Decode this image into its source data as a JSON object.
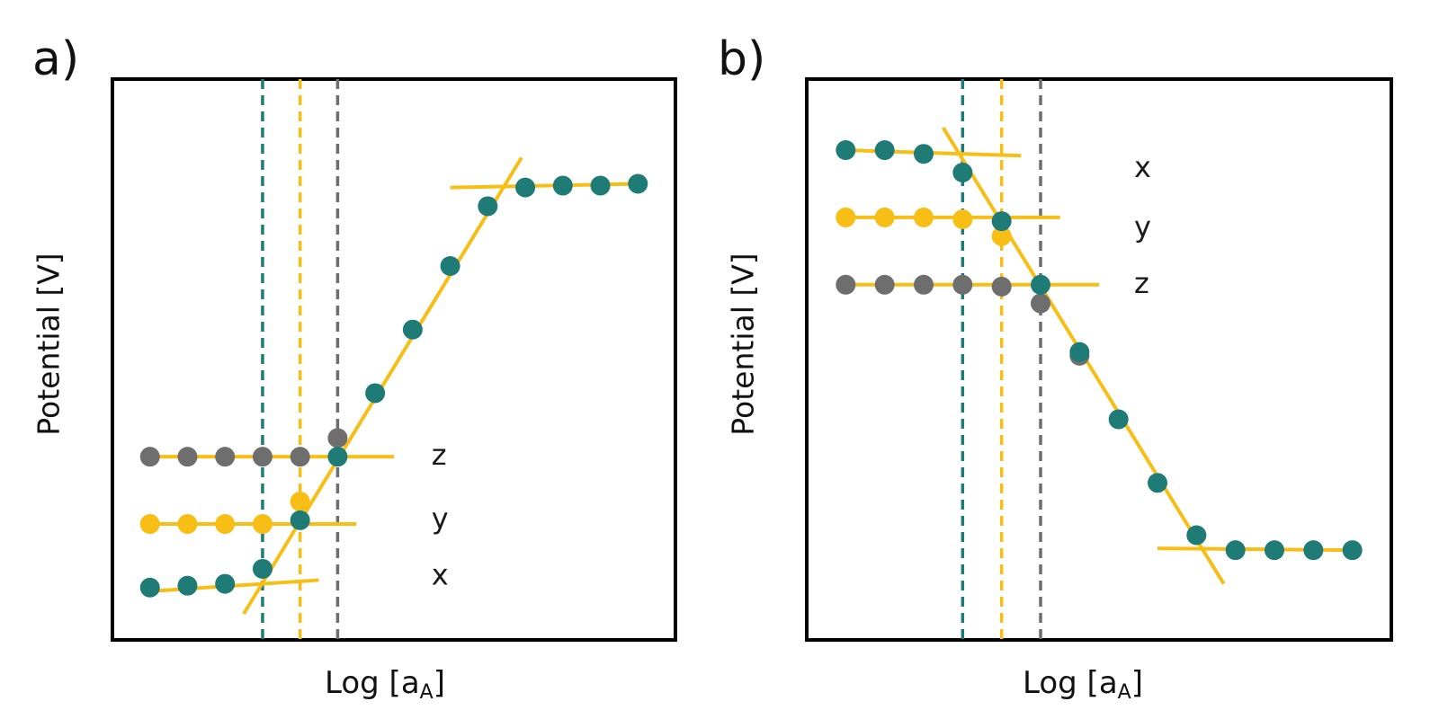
{
  "colors": {
    "teal": "#1e7b75",
    "yellow": "#f7be16",
    "gray": "#6f6e6e",
    "frame": "#000000"
  },
  "chart_data": [
    {
      "panel": "a)",
      "type": "scatter",
      "xlabel_main": "Log [a",
      "xlabel_sub": "A",
      "xlabel_close": "]",
      "ylabel": "Potential  [V]",
      "axis_ticks": "none",
      "grid": false,
      "xlim": [
        0,
        15
      ],
      "ylim": [
        0,
        15
      ],
      "series": [
        {
          "name": "x",
          "color": "teal",
          "x": [
            1,
            2,
            3,
            4,
            5,
            6,
            7,
            8,
            9,
            10,
            11,
            12,
            13,
            14
          ],
          "y": [
            1.4,
            1.45,
            1.5,
            1.9,
            3.2,
            4.9,
            6.6,
            8.3,
            10.0,
            11.6,
            12.1,
            12.15,
            12.15,
            12.2
          ]
        },
        {
          "name": "y",
          "color": "yellow",
          "x": [
            1,
            2,
            3,
            4,
            5
          ],
          "y": [
            3.1,
            3.1,
            3.1,
            3.1,
            3.7
          ]
        },
        {
          "name": "z",
          "color": "gray",
          "x": [
            1,
            2,
            3,
            4,
            5,
            6
          ],
          "y": [
            4.9,
            4.9,
            4.9,
            4.9,
            4.9,
            5.4
          ]
        }
      ],
      "fit_lines": [
        {
          "color": "yellow",
          "x": [
            3.5,
            10.9
          ],
          "y": [
            0.7,
            12.9
          ]
        },
        {
          "color": "yellow",
          "x": [
            1,
            5.5
          ],
          "y": [
            1.3,
            1.6
          ]
        },
        {
          "color": "yellow",
          "x": [
            1,
            6.5
          ],
          "y": [
            3.1,
            3.1
          ]
        },
        {
          "color": "yellow",
          "x": [
            1,
            7.5
          ],
          "y": [
            4.9,
            4.9
          ]
        },
        {
          "color": "yellow",
          "x": [
            9,
            14
          ],
          "y": [
            12.1,
            12.2
          ]
        }
      ],
      "vlines": [
        {
          "color": "teal",
          "x": 4
        },
        {
          "color": "yellow",
          "x": 5
        },
        {
          "color": "gray",
          "x": 6
        }
      ],
      "annotations": [
        {
          "text": "z",
          "x": 8.5,
          "y": 4.9
        },
        {
          "text": "y",
          "x": 8.5,
          "y": 3.2
        },
        {
          "text": "x",
          "x": 8.5,
          "y": 1.7
        }
      ]
    },
    {
      "panel": "b)",
      "type": "scatter",
      "xlabel_main": "Log [a",
      "xlabel_sub": "A",
      "xlabel_close": "]",
      "ylabel": "Potential  [V]",
      "axis_ticks": "none",
      "grid": false,
      "xlim": [
        0,
        15
      ],
      "ylim": [
        0,
        15
      ],
      "series": [
        {
          "name": "x",
          "color": "teal",
          "x": [
            1,
            2,
            3,
            4,
            5,
            6,
            7,
            8,
            9,
            10,
            11,
            12,
            13,
            14
          ],
          "y": [
            13.1,
            13.1,
            13.0,
            12.5,
            11.2,
            9.5,
            7.7,
            5.9,
            4.2,
            2.8,
            2.4,
            2.4,
            2.4,
            2.4
          ]
        },
        {
          "name": "y",
          "color": "yellow",
          "x": [
            1,
            2,
            3,
            4,
            5
          ],
          "y": [
            11.3,
            11.3,
            11.3,
            11.25,
            10.8
          ]
        },
        {
          "name": "z",
          "color": "gray",
          "x": [
            1,
            2,
            3,
            4,
            5,
            6,
            7
          ],
          "y": [
            9.5,
            9.5,
            9.5,
            9.5,
            9.45,
            9.0,
            7.6
          ]
        }
      ],
      "fit_lines": [
        {
          "color": "yellow",
          "x": [
            3.5,
            10.7
          ],
          "y": [
            13.7,
            1.5
          ]
        },
        {
          "color": "yellow",
          "x": [
            1,
            5.5
          ],
          "y": [
            13.1,
            12.95
          ]
        },
        {
          "color": "yellow",
          "x": [
            1,
            6.5
          ],
          "y": [
            11.3,
            11.3
          ]
        },
        {
          "color": "yellow",
          "x": [
            1,
            7.5
          ],
          "y": [
            9.5,
            9.5
          ]
        },
        {
          "color": "yellow",
          "x": [
            9,
            14
          ],
          "y": [
            2.45,
            2.4
          ]
        }
      ],
      "vlines": [
        {
          "color": "teal",
          "x": 4
        },
        {
          "color": "yellow",
          "x": 5
        },
        {
          "color": "gray",
          "x": 6
        }
      ],
      "annotations": [
        {
          "text": "x",
          "x": 8.4,
          "y": 12.6
        },
        {
          "text": "y",
          "x": 8.4,
          "y": 11.0
        },
        {
          "text": "z",
          "x": 8.4,
          "y": 9.5
        }
      ]
    }
  ]
}
